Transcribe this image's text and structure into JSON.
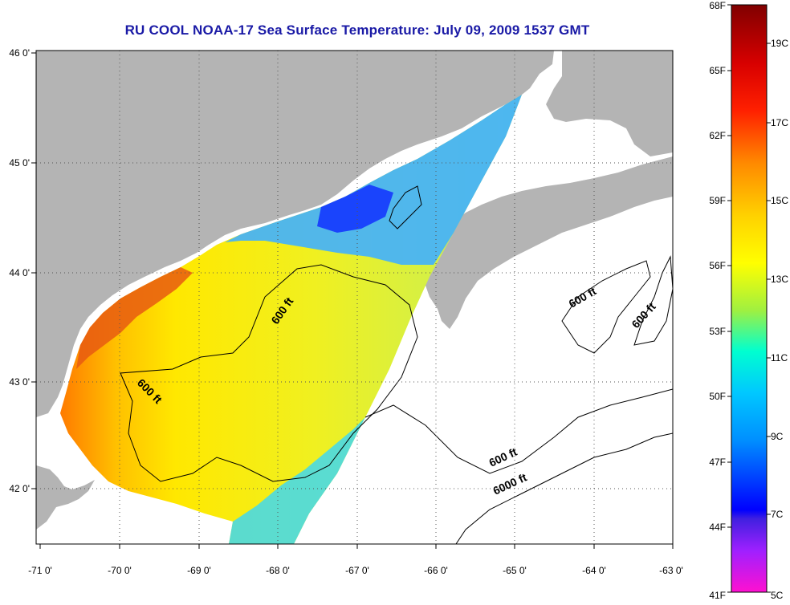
{
  "title": "RU COOL  NOAA-17  Sea Surface Temperature:  July 09, 2009 1537 GMT",
  "colors": {
    "land": "#b4b4b4",
    "water_no_data": "#ffffff",
    "contour": "#000000",
    "title": "#1a1aa6"
  },
  "map": {
    "lon_ticks": [
      "-71 0'",
      "-70 0'",
      "-69 0'",
      "-68 0'",
      "-67 0'",
      "-66 0'",
      "-65 0'",
      "-64 0'",
      "-63 0'"
    ],
    "lat_ticks": [
      "46 0'",
      "45 0'",
      "44 0'",
      "43 0'",
      "42 0'"
    ],
    "lon_range": [
      -71,
      -63
    ],
    "lat_range": [
      41.5,
      46
    ],
    "depth_labels": [
      "600 ft",
      "600 ft",
      "600 ft",
      "600 ft",
      "600 ft",
      "6000 ft"
    ]
  },
  "colorbar": {
    "fahrenheit_labels": [
      "68F",
      "65F",
      "62F",
      "59F",
      "56F",
      "53F",
      "50F",
      "47F",
      "44F",
      "41F"
    ],
    "celsius_labels": [
      "19C",
      "17C",
      "15C",
      "13C",
      "11C",
      "9C",
      "7C",
      "5C"
    ]
  }
}
